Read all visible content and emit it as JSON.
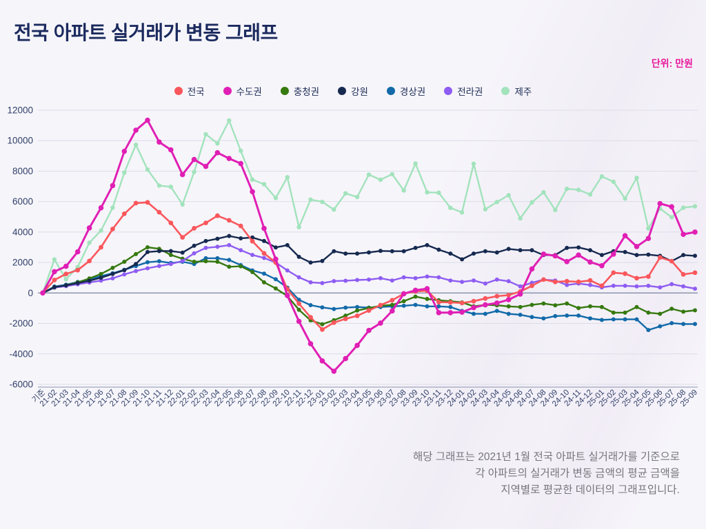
{
  "title": "전국 아파트 실거래가 변동 그래프",
  "unit_label": "단위: 만원",
  "footnote": {
    "line1": "해당 그래프는 2021년 1월 전국 아파트 실거래가를 기준으로",
    "line2": "각 아파트의 실거래가 변동 금액의 평균 금액을",
    "line3": "지역별로 평균한 데이터의 그래프입니다."
  },
  "axis_colors": {
    "tick": "#2f3e68",
    "grid": "#dcdce8",
    "zero_line": "#6b7795",
    "bottom_line": "#8a93ad"
  },
  "chart_data": {
    "type": "line",
    "title": "전국 아파트 실거래가 변동 그래프",
    "xlabel": "",
    "ylabel": "단위: 만원",
    "ylim": [
      -6000,
      12000
    ],
    "ytick_step": 2000,
    "grid": true,
    "legend_position": "top-center",
    "x": [
      "기준",
      "21-02",
      "21-03",
      "21-04",
      "21-05",
      "21-06",
      "21-07",
      "21-08",
      "21-09",
      "21-10",
      "21-11",
      "21-12",
      "22-01",
      "22-02",
      "22-03",
      "22-04",
      "22-05",
      "22-06",
      "22-07",
      "22-08",
      "22-09",
      "22-10",
      "22-11",
      "22-12",
      "23-01",
      "23-02",
      "23-03",
      "23-04",
      "23-05",
      "23-06",
      "23-07",
      "23-08",
      "23-09",
      "23-10",
      "23-11",
      "23-12",
      "24-01",
      "24-02",
      "24-03",
      "24-04",
      "24-05",
      "24-06",
      "24-07",
      "24-08",
      "24-09",
      "24-10",
      "24-11",
      "24-12",
      "25-01",
      "25-02",
      "25-03",
      "25-04",
      "25-05",
      "25-06",
      "25-07",
      "25-08",
      "25-09"
    ],
    "series": [
      {
        "key": "jeonguk",
        "name": "전국",
        "color": "#f9575c",
        "line_width": 2.6,
        "marker_r": 3.4,
        "values": [
          0,
          850,
          1250,
          1500,
          2100,
          3000,
          4200,
          5200,
          5900,
          5950,
          5300,
          4600,
          3650,
          4250,
          4600,
          5070,
          4770,
          4400,
          3400,
          2600,
          2000,
          250,
          -700,
          -1600,
          -2400,
          -1950,
          -1700,
          -1500,
          -1150,
          -800,
          -480,
          -50,
          100,
          150,
          -600,
          -620,
          -660,
          -540,
          -360,
          -210,
          -140,
          90,
          470,
          880,
          730,
          770,
          730,
          820,
          470,
          1330,
          1270,
          970,
          1080,
          2330,
          2090,
          1220,
          1330
        ]
      },
      {
        "key": "sudogwon",
        "name": "수도권",
        "color": "#e01fb4",
        "line_width": 3.0,
        "marker_r": 3.8,
        "values": [
          0,
          1400,
          1750,
          2700,
          4270,
          5590,
          7050,
          9300,
          10690,
          11340,
          9910,
          9400,
          7770,
          8760,
          8310,
          9210,
          8830,
          8500,
          6650,
          4240,
          2220,
          -170,
          -1860,
          -3330,
          -4460,
          -5140,
          -4310,
          -3440,
          -2460,
          -1980,
          -1180,
          -50,
          180,
          280,
          -1290,
          -1290,
          -1260,
          -960,
          -780,
          -660,
          -440,
          -70,
          1580,
          2550,
          2440,
          2060,
          2490,
          2030,
          1790,
          2550,
          3760,
          3050,
          3580,
          5870,
          5660,
          3850,
          4000
        ]
      },
      {
        "key": "chungcheong",
        "name": "충청권",
        "color": "#36790f",
        "line_width": 2.4,
        "marker_r": 3.0,
        "values": [
          0,
          350,
          500,
          700,
          950,
          1250,
          1650,
          2050,
          2550,
          3000,
          2900,
          2500,
          2250,
          2050,
          2080,
          2050,
          1720,
          1750,
          1370,
          700,
          300,
          -200,
          -1100,
          -1800,
          -2050,
          -1790,
          -1490,
          -1150,
          -990,
          -840,
          -780,
          -540,
          -240,
          -390,
          -480,
          -540,
          -620,
          -880,
          -780,
          -810,
          -880,
          -920,
          -780,
          -690,
          -810,
          -690,
          -990,
          -880,
          -920,
          -1290,
          -1290,
          -920,
          -1290,
          -1370,
          -1040,
          -1230,
          -1140
        ]
      },
      {
        "key": "gangwon",
        "name": "강원",
        "color": "#16294f",
        "line_width": 2.4,
        "marker_r": 3.0,
        "values": [
          0,
          380,
          500,
          650,
          800,
          1000,
          1250,
          1500,
          1900,
          2690,
          2750,
          2750,
          2650,
          3100,
          3410,
          3560,
          3740,
          3590,
          3640,
          3410,
          2990,
          3140,
          2370,
          2000,
          2100,
          2740,
          2590,
          2590,
          2660,
          2760,
          2740,
          2740,
          2960,
          3140,
          2840,
          2590,
          2210,
          2590,
          2740,
          2660,
          2890,
          2810,
          2810,
          2490,
          2490,
          2960,
          2990,
          2810,
          2490,
          2740,
          2690,
          2490,
          2520,
          2440,
          2090,
          2490,
          2440
        ]
      },
      {
        "key": "gyeongsang",
        "name": "경상권",
        "color": "#126aa9",
        "line_width": 2.4,
        "marker_r": 3.0,
        "values": [
          0,
          420,
          540,
          720,
          870,
          1110,
          1290,
          1520,
          1770,
          2020,
          2080,
          1970,
          2050,
          1900,
          2280,
          2280,
          2170,
          1830,
          1480,
          1270,
          900,
          350,
          -450,
          -800,
          -950,
          -1050,
          -960,
          -920,
          -960,
          -920,
          -880,
          -840,
          -780,
          -880,
          -880,
          -920,
          -1180,
          -1370,
          -1370,
          -1180,
          -1370,
          -1430,
          -1580,
          -1670,
          -1520,
          -1480,
          -1480,
          -1670,
          -1770,
          -1730,
          -1730,
          -1730,
          -2430,
          -2190,
          -1980,
          -2040,
          -2040
        ]
      },
      {
        "key": "jeolla",
        "name": "전라권",
        "color": "#8e5cf2",
        "line_width": 2.4,
        "marker_r": 3.0,
        "values": [
          0,
          360,
          450,
          570,
          690,
          810,
          960,
          1220,
          1440,
          1620,
          1770,
          1900,
          2100,
          2600,
          2960,
          3030,
          3140,
          2810,
          2500,
          2300,
          2000,
          1480,
          1030,
          700,
          650,
          780,
          800,
          850,
          880,
          970,
          820,
          1030,
          970,
          1080,
          1030,
          820,
          730,
          820,
          620,
          880,
          770,
          430,
          670,
          880,
          820,
          520,
          620,
          520,
          370,
          470,
          470,
          430,
          470,
          370,
          580,
          430,
          280
        ]
      },
      {
        "key": "jeju",
        "name": "제주",
        "color": "#a2e3bc",
        "line_width": 2.4,
        "marker_r": 3.2,
        "values": [
          0,
          2200,
          900,
          1700,
          3300,
          4100,
          5600,
          7900,
          9730,
          8100,
          7050,
          6970,
          5810,
          7950,
          10420,
          9820,
          11320,
          9330,
          7440,
          7140,
          6240,
          7600,
          4320,
          6130,
          5980,
          5480,
          6540,
          6300,
          7770,
          7430,
          7800,
          6730,
          8500,
          6610,
          6580,
          5590,
          5290,
          8480,
          5490,
          5970,
          6420,
          4900,
          5950,
          6610,
          5450,
          6840,
          6770,
          6470,
          7650,
          7300,
          6200,
          7560,
          4240,
          5540,
          4970,
          5600,
          5690
        ]
      }
    ]
  }
}
